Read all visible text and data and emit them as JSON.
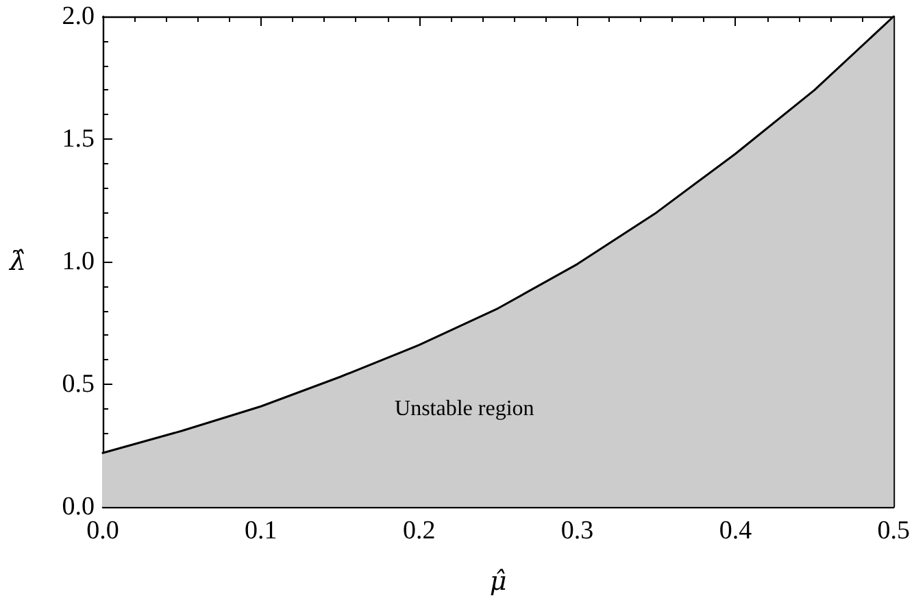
{
  "chart_data": {
    "type": "area",
    "xlabel": "μ̂",
    "ylabel": "λ̂",
    "annotations": [
      "Unstable region"
    ],
    "x": [
      0,
      0.05,
      0.1,
      0.15,
      0.2,
      0.25,
      0.3,
      0.35,
      0.4,
      0.45,
      0.5
    ],
    "values": [
      0.22,
      0.31,
      0.41,
      0.53,
      0.66,
      0.81,
      0.99,
      1.2,
      1.44,
      1.7,
      2.0
    ],
    "color": "#cccccc",
    "xlim": [
      0,
      0.5
    ],
    "xticks": [
      {
        "value": 0,
        "label": "0.0"
      },
      0.1,
      0.2,
      0.3,
      0.4,
      0.5
    ],
    "ylim": [
      0,
      2
    ],
    "yticks": [
      {
        "value": 0,
        "label": "0.0"
      },
      0.5,
      {
        "value": 1,
        "label": "1.0"
      },
      1.5,
      {
        "value": 2,
        "label": "2.0"
      }
    ]
  }
}
